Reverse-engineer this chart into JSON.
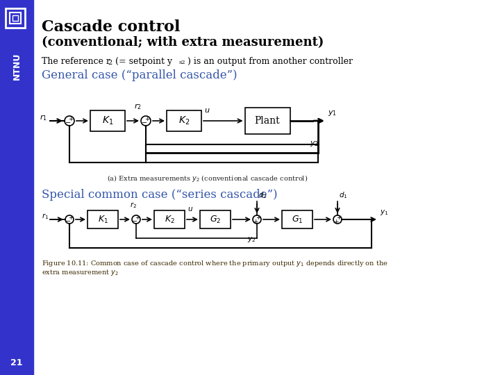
{
  "title_line1": "Cascade control",
  "title_line2": "(conventional; with extra measurement)",
  "section1": "General case (“parallel cascade”)",
  "section2": "Special common case (“series cascade”)",
  "caption_a": "(a) Extra measurements y₂ (conventional cascade control)",
  "fig_cap1": "Figure 10.11: Common case of cascade control where the primary output y",
  "fig_cap2": "extra measurement y",
  "page_num": "21",
  "bg_color": "#FFFFFF",
  "sidebar_color": "#3333CC",
  "title_color": "#000000",
  "section_color": "#3355AA",
  "subtitle_color": "#000000",
  "fig_caption_color": "#3B2800"
}
